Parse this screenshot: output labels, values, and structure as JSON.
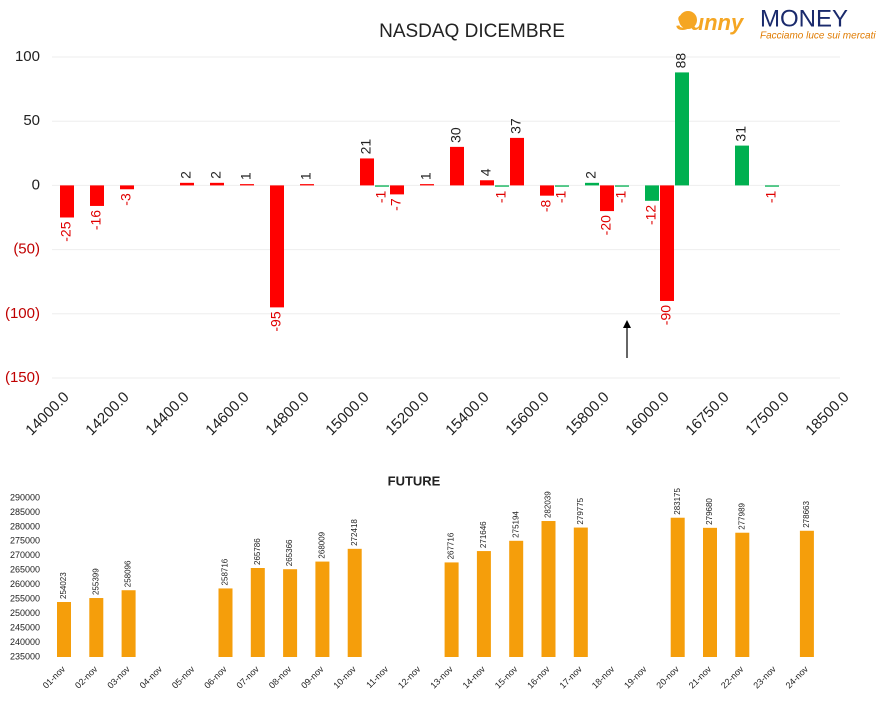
{
  "logo": {
    "brand1": "Sunny",
    "brand2": "MONEY",
    "tagline": "Facciamo luce sui mercati"
  },
  "chart_data": [
    {
      "type": "bar",
      "title": "NASDAQ DICEMBRE",
      "categories": [
        "14000.0",
        null,
        "14200.0",
        null,
        "14400.0",
        null,
        "14600.0",
        null,
        "14800.0",
        null,
        "15000.0",
        null,
        "15200.0",
        null,
        "15400.0",
        null,
        "15600.0",
        null,
        "15800.0",
        null,
        "16000.0",
        null,
        "16750.0",
        null,
        "17500.0",
        null,
        "18500.0"
      ],
      "series": [
        {
          "color": "#ff0000",
          "values": [
            -25,
            -16,
            -3,
            null,
            2,
            2,
            1,
            -95,
            1,
            null,
            21,
            -7,
            1,
            30,
            4,
            37,
            -8,
            null,
            -20,
            null,
            -90,
            null,
            null,
            null,
            null,
            null,
            null
          ]
        },
        {
          "color": "#00b050",
          "values": [
            null,
            null,
            null,
            null,
            null,
            null,
            null,
            null,
            null,
            null,
            -1,
            null,
            null,
            null,
            -1,
            null,
            -1,
            2,
            -1,
            -12,
            88,
            null,
            31,
            -1,
            null,
            null,
            null
          ]
        }
      ],
      "ylim": [
        -150,
        100
      ],
      "yticks": [
        {
          "value": -150,
          "label": "(150)"
        },
        {
          "value": -100,
          "label": "(100)"
        },
        {
          "value": -50,
          "label": "(50)"
        },
        0,
        50,
        100
      ],
      "grid": true
    },
    {
      "type": "bar",
      "title": "FUTURE",
      "categories": [
        "01-nov",
        "02-nov",
        "03-nov",
        "04-nov",
        "05-nov",
        "06-nov",
        "07-nov",
        "08-nov",
        "09-nov",
        "10-nov",
        "11-nov",
        "12-nov",
        "13-nov",
        "14-nov",
        "15-nov",
        "16-nov",
        "17-nov",
        "18-nov",
        "19-nov",
        "20-nov",
        "21-nov",
        "22-nov",
        "23-nov",
        "24-nov"
      ],
      "series": [
        {
          "color": "#f59e0b",
          "values": [
            254023,
            255399,
            258096,
            null,
            null,
            258716,
            265786,
            265366,
            268009,
            272418,
            null,
            null,
            267716,
            271646,
            275194,
            282039,
            279775,
            null,
            null,
            283175,
            279680,
            277989,
            null,
            278663
          ]
        }
      ],
      "ylim": [
        235000,
        290000
      ],
      "yticks": [
        235000,
        240000,
        245000,
        250000,
        255000,
        260000,
        265000,
        270000,
        275000,
        280000,
        285000,
        290000
      ],
      "grid": false
    }
  ]
}
